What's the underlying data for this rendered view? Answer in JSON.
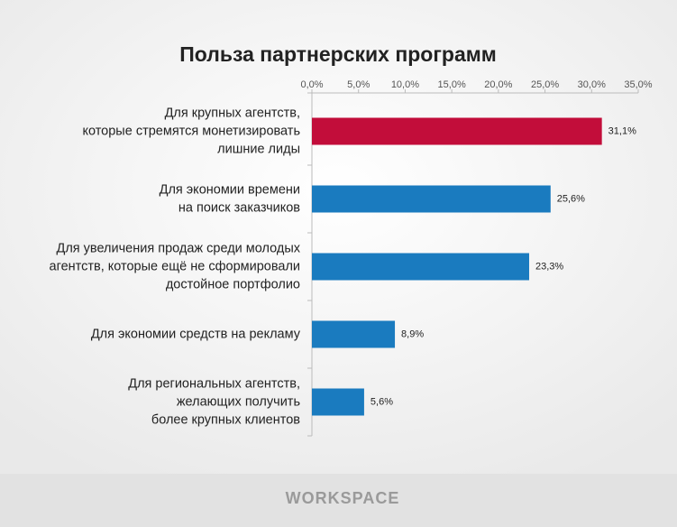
{
  "chart_data": {
    "type": "barh",
    "title": "Польза партнерских программ",
    "categories": [
      [
        "Для крупных агентств,",
        "которые стремятся монетизировать",
        "лишние лиды"
      ],
      [
        "Для экономии времени",
        "на поиск заказчиков"
      ],
      [
        "Для увеличения продаж среди молодых",
        "агентств, которые ещё не сформировали",
        "достойное портфолио"
      ],
      [
        "Для экономии средств на рекламу"
      ],
      [
        "Для региональных агентств,",
        "желающих получить",
        "более крупных клиентов"
      ]
    ],
    "values": [
      31.1,
      25.6,
      23.3,
      8.9,
      5.6
    ],
    "value_labels": [
      "31,1%",
      "25,6%",
      "23,3%",
      "8,9%",
      "5,6%"
    ],
    "colors": [
      "#c20d3a",
      "#1a7bbf",
      "#1a7bbf",
      "#1a7bbf",
      "#1a7bbf"
    ],
    "xlim": [
      0,
      35
    ],
    "xticks": [
      {
        "value": 0,
        "label": "0,0%"
      },
      {
        "value": 5,
        "label": "5,0%"
      },
      {
        "value": 10,
        "label": "10,0%"
      },
      {
        "value": 15,
        "label": "15,0%"
      },
      {
        "value": 20,
        "label": "20,0%"
      },
      {
        "value": 25,
        "label": "25,0%"
      },
      {
        "value": 30,
        "label": "30,0%"
      },
      {
        "value": 35,
        "label": "35,0%"
      }
    ],
    "footer": "WORKSPACE"
  }
}
